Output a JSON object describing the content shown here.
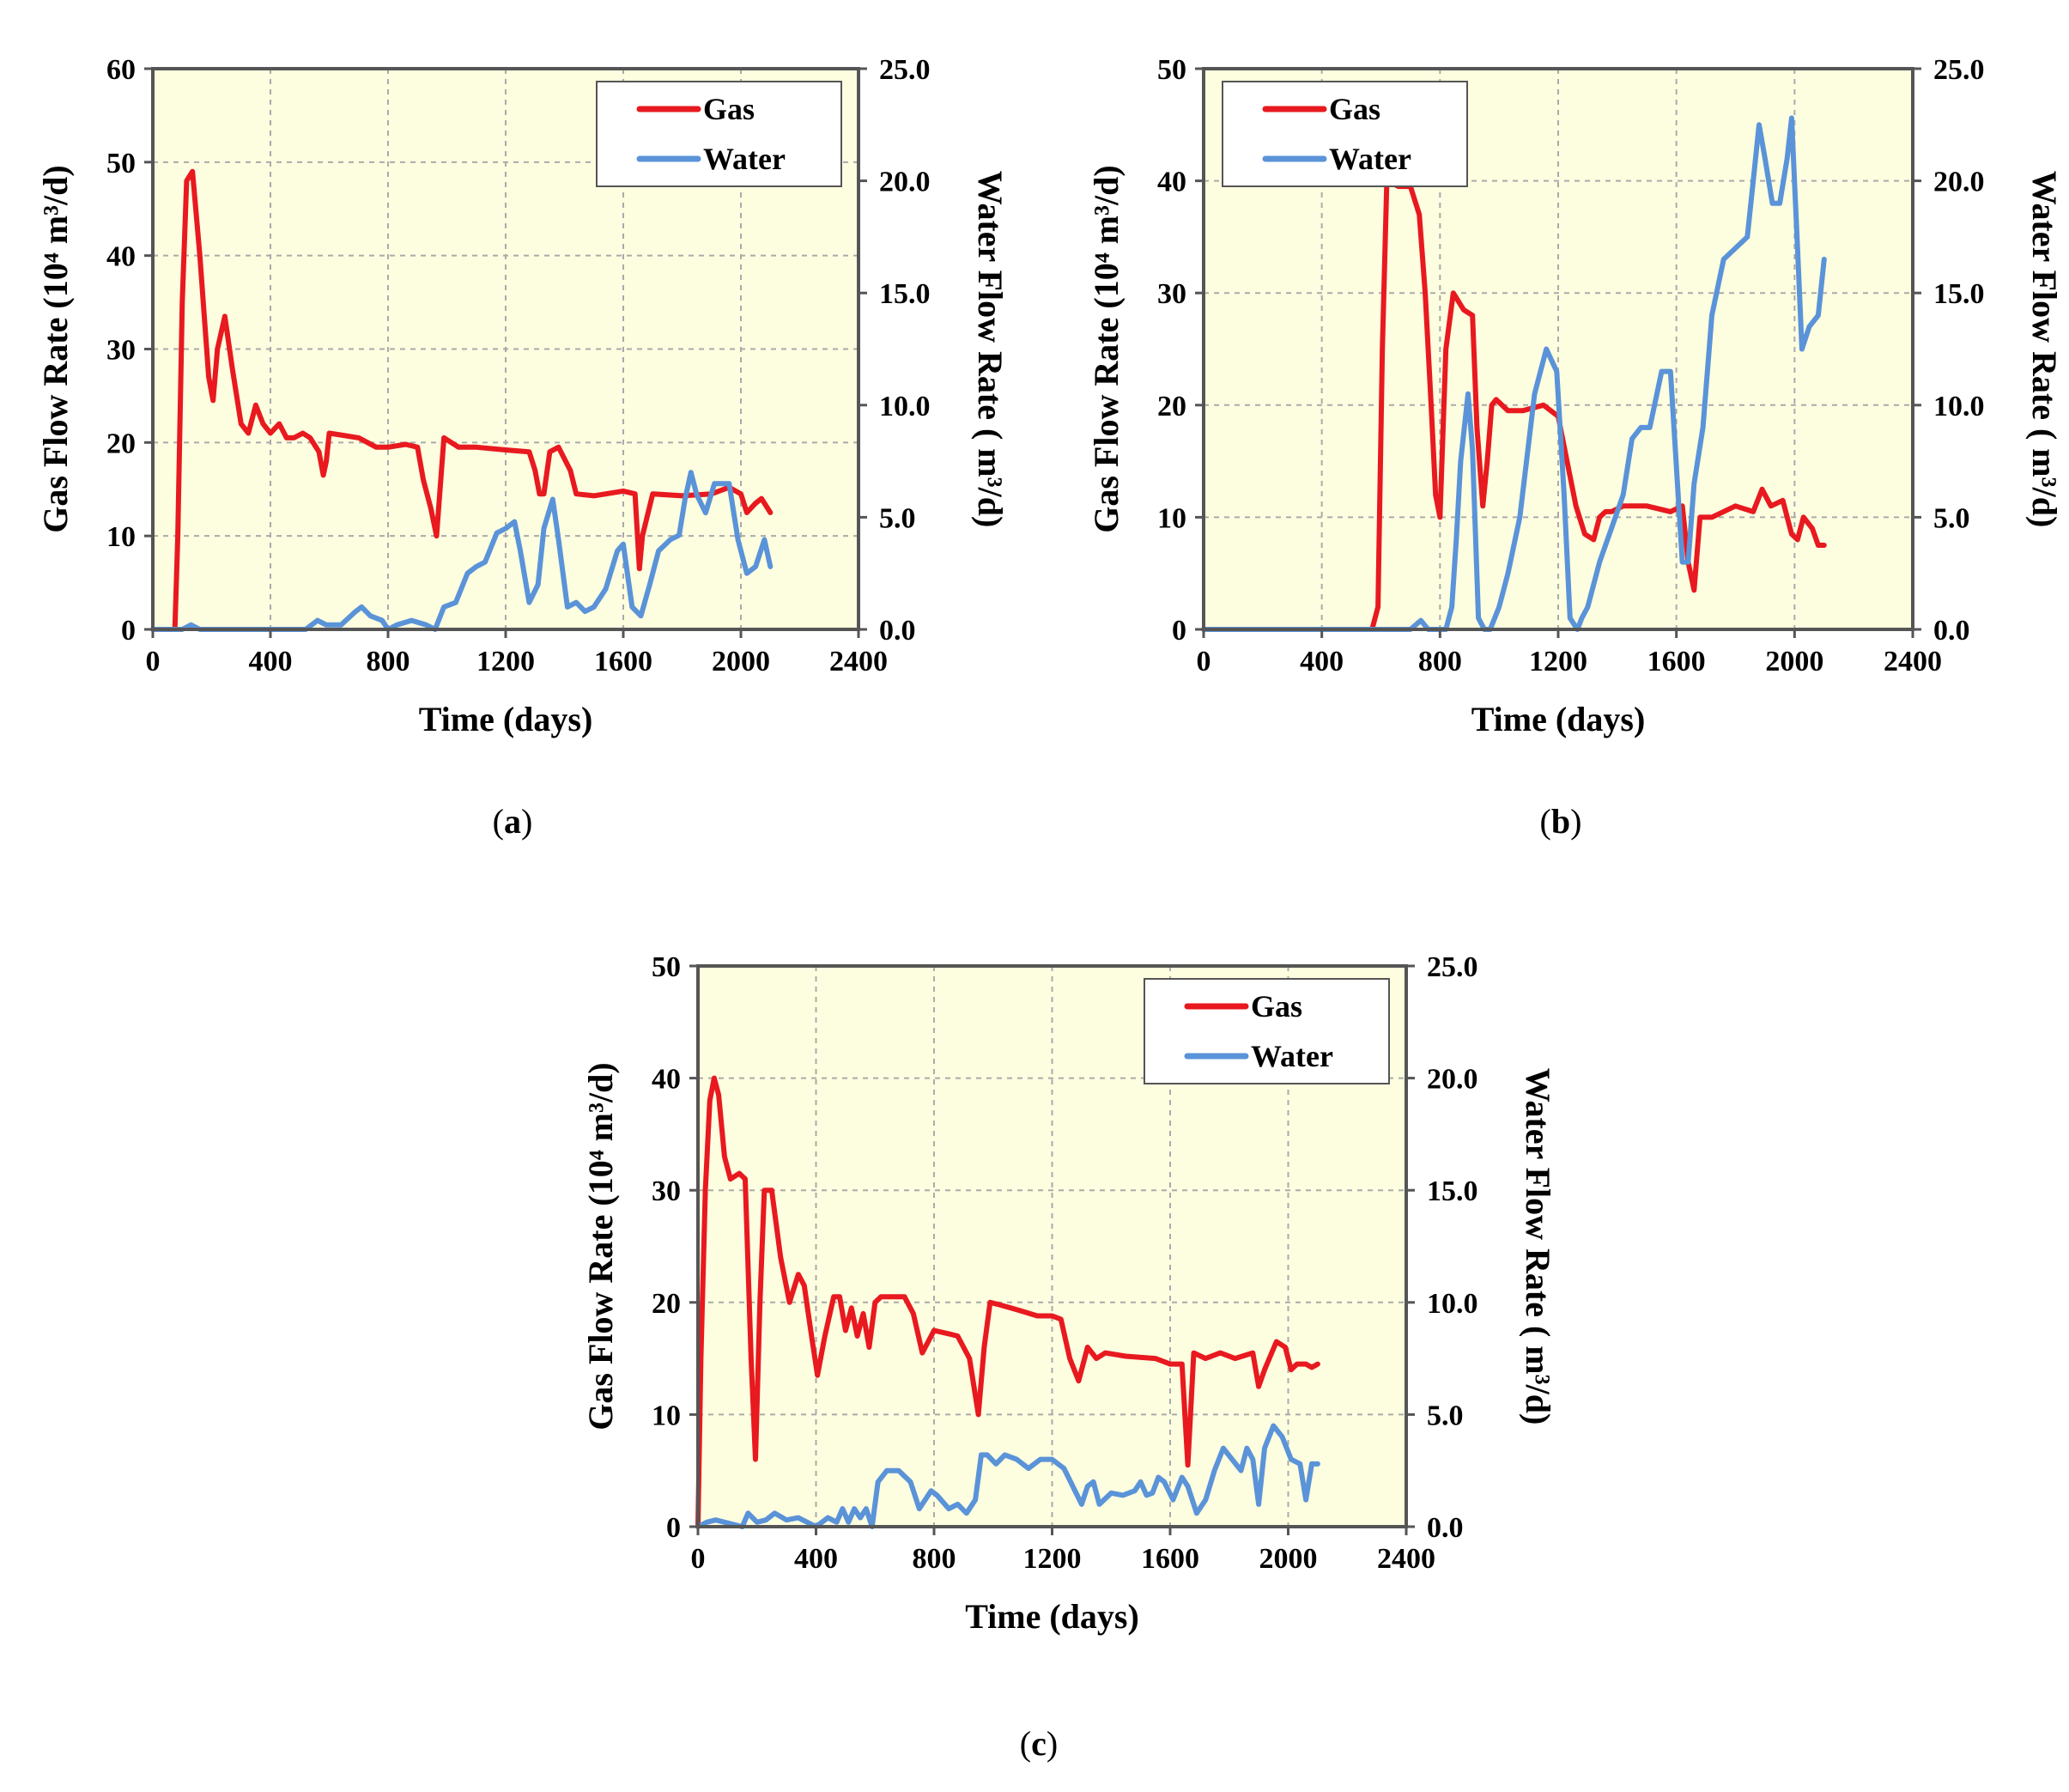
{
  "figure": {
    "colors": {
      "gas": "#e8191f",
      "water": "#5a93d8",
      "plot_bg": "#fdfde0",
      "grid": "#aaaaaa"
    },
    "captions": [
      {
        "pre": "(",
        "letter": "a",
        "post": ")"
      },
      {
        "pre": "(",
        "letter": "b",
        "post": ")"
      },
      {
        "pre": "(",
        "letter": "c",
        "post": ")"
      }
    ]
  },
  "chart_data": [
    {
      "id": "a",
      "type": "line",
      "xlabel": "Time (days)",
      "ylabel_left": "Gas Flow Rate (10⁴ m³/d)",
      "ylabel_right": "Water Flow Rate ( m³/d)",
      "xlim": [
        0,
        2400
      ],
      "xticks": [
        "0",
        "400",
        "800",
        "1200",
        "1600",
        "2000",
        "2400"
      ],
      "ylim_left": [
        0,
        60
      ],
      "yticks_left": [
        "0",
        "10",
        "20",
        "30",
        "40",
        "50",
        "60"
      ],
      "ylim_right": [
        0,
        25
      ],
      "yticks_right": [
        "0.0",
        "5.0",
        "10.0",
        "15.0",
        "20.0",
        "25.0"
      ],
      "legend": {
        "position": "top-right",
        "entries": [
          "Gas",
          "Water"
        ]
      },
      "series": [
        {
          "name": "Gas",
          "axis": "left",
          "x": [
            0,
            75,
            85,
            100,
            115,
            135,
            160,
            190,
            205,
            220,
            245,
            270,
            300,
            325,
            350,
            375,
            400,
            430,
            455,
            480,
            510,
            535,
            565,
            580,
            590,
            600,
            640,
            700,
            760,
            800,
            860,
            900,
            920,
            945,
            965,
            990,
            1040,
            1100,
            1200,
            1280,
            1300,
            1315,
            1330,
            1350,
            1380,
            1420,
            1440,
            1500,
            1600,
            1640,
            1655,
            1665,
            1700,
            1800,
            1900,
            1960,
            2000,
            2020,
            2050,
            2070,
            2100
          ],
          "y": [
            0,
            0,
            10,
            35,
            48,
            49,
            40,
            27,
            24.5,
            30,
            33.5,
            28,
            22,
            21,
            24,
            22,
            21,
            22,
            20.5,
            20.5,
            21,
            20.5,
            19,
            16.5,
            18,
            21,
            20.8,
            20.5,
            19.5,
            19.5,
            19.8,
            19.5,
            16,
            13,
            10,
            20.5,
            19.5,
            19.5,
            19.2,
            19,
            17,
            14.5,
            14.5,
            19,
            19.5,
            17,
            14.5,
            14.3,
            14.8,
            14.5,
            6.5,
            10,
            14.5,
            14.3,
            14.5,
            15.2,
            14.5,
            12.5,
            13.5,
            14,
            12.5
          ]
        },
        {
          "name": "Water",
          "axis": "right",
          "x": [
            0,
            100,
            130,
            160,
            400,
            520,
            560,
            590,
            640,
            690,
            710,
            740,
            780,
            800,
            830,
            880,
            930,
            960,
            990,
            1030,
            1070,
            1100,
            1130,
            1170,
            1200,
            1230,
            1250,
            1280,
            1310,
            1330,
            1360,
            1380,
            1410,
            1440,
            1470,
            1500,
            1540,
            1580,
            1600,
            1630,
            1660,
            1690,
            1720,
            1760,
            1790,
            1810,
            1830,
            1850,
            1880,
            1910,
            1960,
            1990,
            2020,
            2050,
            2080,
            2100
          ],
          "y": [
            0,
            0,
            0.2,
            0,
            0,
            0,
            0.4,
            0.2,
            0.2,
            0.8,
            1,
            0.6,
            0.4,
            0,
            0.2,
            0.4,
            0.2,
            0,
            1,
            1.2,
            2.5,
            2.8,
            3,
            4.3,
            4.5,
            4.8,
            3.5,
            1.2,
            2,
            4.5,
            5.8,
            4,
            1,
            1.2,
            0.8,
            1,
            1.8,
            3.5,
            3.8,
            1,
            0.6,
            2,
            3.5,
            4,
            4.2,
            5.8,
            7,
            6,
            5.2,
            6.5,
            6.5,
            4,
            2.5,
            2.8,
            4,
            2.8
          ]
        }
      ]
    },
    {
      "id": "b",
      "type": "line",
      "xlabel": "Time (days)",
      "ylabel_left": "Gas Flow Rate (10⁴ m³/d)",
      "ylabel_right": "Water Flow Rate ( m³/d)",
      "xlim": [
        0,
        2400
      ],
      "xticks": [
        "0",
        "400",
        "800",
        "1200",
        "1600",
        "2000",
        "2400"
      ],
      "ylim_left": [
        0,
        50
      ],
      "yticks_left": [
        "0",
        "10",
        "20",
        "30",
        "40",
        "50"
      ],
      "ylim_right": [
        0,
        25
      ],
      "yticks_right": [
        "0.0",
        "5.0",
        "10.0",
        "15.0",
        "20.0",
        "25.0"
      ],
      "legend": {
        "position": "top-left",
        "entries": [
          "Gas",
          "Water"
        ]
      },
      "series": [
        {
          "name": "Gas",
          "axis": "left",
          "x": [
            0,
            570,
            590,
            605,
            620,
            660,
            700,
            730,
            750,
            770,
            785,
            800,
            820,
            845,
            880,
            910,
            925,
            945,
            960,
            975,
            990,
            1030,
            1080,
            1150,
            1200,
            1230,
            1260,
            1290,
            1320,
            1340,
            1360,
            1380,
            1420,
            1500,
            1580,
            1620,
            1640,
            1660,
            1680,
            1720,
            1800,
            1860,
            1890,
            1920,
            1960,
            1990,
            2010,
            2030,
            2060,
            2080,
            2100
          ],
          "y": [
            0,
            0,
            2,
            25,
            40,
            39.5,
            39.5,
            37,
            30,
            20,
            12,
            10,
            25,
            30,
            28.5,
            28,
            18,
            11,
            15,
            20,
            20.5,
            19.5,
            19.5,
            20,
            19,
            15,
            11,
            8.5,
            8,
            10,
            10.5,
            10.5,
            11,
            11,
            10.5,
            11,
            6,
            3.5,
            10,
            10,
            11,
            10.5,
            12.5,
            11,
            11.5,
            8.5,
            8,
            10,
            9,
            7.5,
            7.5
          ]
        },
        {
          "name": "Water",
          "axis": "right",
          "x": [
            0,
            700,
            735,
            760,
            820,
            840,
            855,
            870,
            895,
            910,
            930,
            950,
            970,
            1000,
            1030,
            1070,
            1120,
            1160,
            1195,
            1220,
            1240,
            1265,
            1280,
            1300,
            1340,
            1380,
            1420,
            1450,
            1480,
            1510,
            1550,
            1580,
            1620,
            1640,
            1660,
            1690,
            1720,
            1760,
            1800,
            1840,
            1860,
            1880,
            1900,
            1925,
            1950,
            1975,
            1990,
            2010,
            2025,
            2050,
            2080,
            2100
          ],
          "y": [
            0,
            0,
            0.4,
            0,
            0,
            1,
            4,
            7.5,
            10.5,
            8,
            0.5,
            0,
            0,
            1,
            2.5,
            5,
            10.5,
            12.5,
            11.5,
            6,
            0.5,
            0,
            0.5,
            1,
            3,
            4.5,
            6,
            8.5,
            9,
            9,
            11.5,
            11.5,
            3,
            3,
            6.5,
            9,
            14,
            16.5,
            17,
            17.5,
            20,
            22.5,
            21,
            19,
            19,
            21,
            22.8,
            17,
            12.5,
            13.5,
            14,
            16.5
          ]
        }
      ]
    },
    {
      "id": "c",
      "type": "line",
      "xlabel": "Time (days)",
      "ylabel_left": "Gas Flow Rate (10⁴ m³/d)",
      "ylabel_right": "Water Flow Rate ( m³/d)",
      "xlim": [
        0,
        2400
      ],
      "xticks": [
        "0",
        "400",
        "800",
        "1200",
        "1600",
        "2000",
        "2400"
      ],
      "ylim_left": [
        0,
        50
      ],
      "yticks_left": [
        "0",
        "10",
        "20",
        "30",
        "40",
        "50"
      ],
      "ylim_right": [
        0,
        25
      ],
      "yticks_right": [
        "0.0",
        "5.0",
        "10.0",
        "15.0",
        "20.0",
        "25.0"
      ],
      "legend": {
        "position": "top-right",
        "entries": [
          "Gas",
          "Water"
        ]
      },
      "series": [
        {
          "name": "Gas",
          "axis": "left",
          "x": [
            0,
            10,
            25,
            40,
            55,
            70,
            90,
            110,
            140,
            160,
            180,
            195,
            210,
            225,
            250,
            280,
            310,
            340,
            360,
            385,
            405,
            430,
            460,
            480,
            500,
            520,
            540,
            560,
            580,
            600,
            620,
            650,
            700,
            730,
            760,
            800,
            850,
            880,
            920,
            950,
            970,
            990,
            1020,
            1060,
            1100,
            1150,
            1200,
            1230,
            1260,
            1290,
            1320,
            1350,
            1380,
            1450,
            1550,
            1600,
            1640,
            1660,
            1680,
            1720,
            1770,
            1820,
            1880,
            1900,
            1920,
            1960,
            1990,
            2010,
            2030,
            2060,
            2080,
            2100
          ],
          "y": [
            0,
            15,
            30,
            38,
            40,
            38.5,
            33,
            31,
            31.5,
            31,
            15,
            6,
            20,
            30,
            30,
            24,
            20,
            22.5,
            21.5,
            17,
            13.5,
            17,
            20.5,
            20.5,
            17.5,
            19.5,
            17,
            19,
            16,
            20,
            20.5,
            20.5,
            20.5,
            19,
            15.5,
            17.5,
            17.2,
            17,
            15,
            10,
            16,
            20,
            19.8,
            19.5,
            19.2,
            18.8,
            18.8,
            18.5,
            15,
            13,
            16,
            15,
            15.5,
            15.2,
            15,
            14.5,
            14.5,
            5.5,
            15.5,
            15,
            15.5,
            15,
            15.5,
            12.5,
            14,
            16.5,
            16,
            14,
            14.5,
            14.5,
            14.2,
            14.5
          ]
        },
        {
          "name": "Water",
          "axis": "right",
          "x": [
            0,
            30,
            60,
            150,
            170,
            200,
            230,
            260,
            300,
            340,
            370,
            400,
            440,
            470,
            490,
            510,
            530,
            550,
            570,
            590,
            610,
            640,
            680,
            720,
            750,
            790,
            810,
            850,
            880,
            910,
            940,
            960,
            980,
            1010,
            1040,
            1080,
            1120,
            1160,
            1200,
            1240,
            1270,
            1300,
            1320,
            1340,
            1360,
            1400,
            1440,
            1480,
            1500,
            1520,
            1540,
            1560,
            1580,
            1610,
            1640,
            1660,
            1690,
            1720,
            1750,
            1780,
            1810,
            1840,
            1860,
            1880,
            1900,
            1920,
            1950,
            1980,
            2010,
            2040,
            2060,
            2080,
            2100
          ],
          "y": [
            0,
            0.2,
            0.3,
            0,
            0.6,
            0.2,
            0.3,
            0.6,
            0.3,
            0.4,
            0.2,
            0,
            0.4,
            0.2,
            0.8,
            0.2,
            0.8,
            0.4,
            0.8,
            0,
            2,
            2.5,
            2.5,
            2,
            0.8,
            1.6,
            1.4,
            0.8,
            1,
            0.6,
            1.2,
            3.2,
            3.2,
            2.8,
            3.2,
            3,
            2.6,
            3,
            3,
            2.6,
            1.8,
            1,
            1.8,
            2,
            1,
            1.5,
            1.4,
            1.6,
            2,
            1.4,
            1.5,
            2.2,
            2,
            1.2,
            2.2,
            1.8,
            0.6,
            1.2,
            2.5,
            3.5,
            3,
            2.5,
            3.5,
            3,
            1,
            3.5,
            4.5,
            4,
            3,
            2.8,
            1.2,
            2.8,
            2.8
          ]
        }
      ]
    }
  ]
}
